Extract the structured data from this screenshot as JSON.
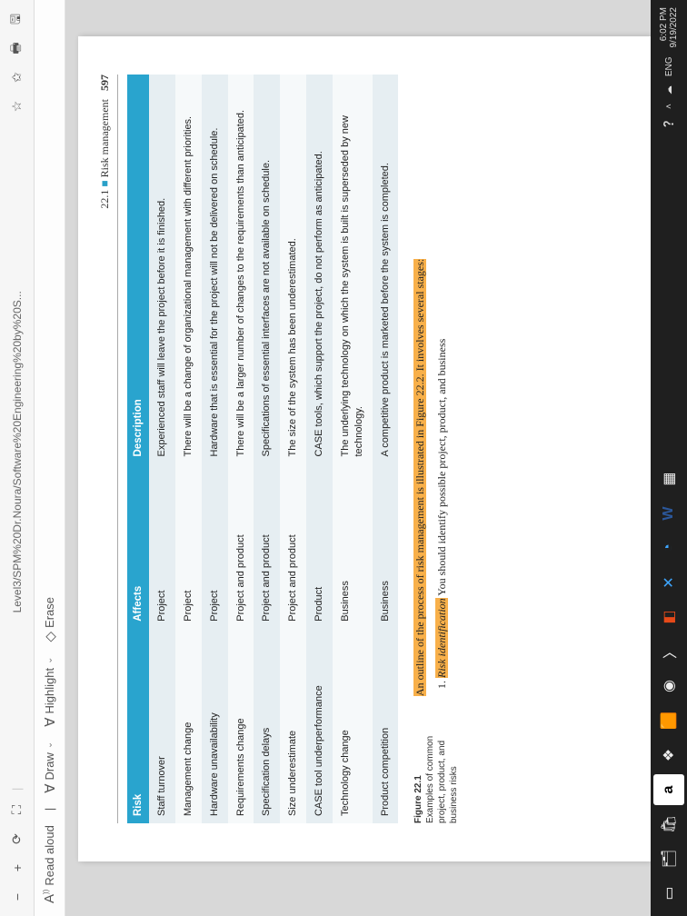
{
  "browser_tab_title": "Level3/SPM%20Dr.Noura/Software%20Engineering%20by%20S...",
  "toolbar2": {
    "read_aloud": "Read aloud",
    "draw": "Draw",
    "highlight": "Highlight",
    "erase": "Erase"
  },
  "page": {
    "running_section": "22.1",
    "running_title_marker": "■",
    "running_title": "Risk management",
    "page_number": "597",
    "table": {
      "headers": [
        "Risk",
        "Affects",
        "Description"
      ],
      "col_widths": [
        "26%",
        "22%",
        "52%"
      ],
      "header_bg": "#29a4ce",
      "header_fg": "#ffffff",
      "row_odd_bg": "#e6eef2",
      "row_even_bg": "#f6f9fa",
      "rows": [
        [
          "Staff turnover",
          "Project",
          "Experienced staff will leave the project before it is finished."
        ],
        [
          "Management change",
          "Project",
          "There will be a change of organizational management with different priorities."
        ],
        [
          "Hardware unavailability",
          "Project",
          "Hardware that is essential for the project will not be delivered on schedule."
        ],
        [
          "Requirements change",
          "Project and product",
          "There will be a larger number of changes to the requirements than anticipated."
        ],
        [
          "Specification delays",
          "Project and product",
          "Specifications of essential interfaces are not available on schedule."
        ],
        [
          "Size underestimate",
          "Project and product",
          "The size of the system has been underestimated."
        ],
        [
          "CASE tool underperformance",
          "Product",
          "CASE tools, which support the project, do not perform as anticipated."
        ],
        [
          "Technology change",
          "Business",
          "The underlying technology on which the system is built is superseded by new technology."
        ],
        [
          "Product competition",
          "Business",
          "A competitive product is marketed before the system is completed."
        ]
      ]
    },
    "figure": {
      "label": "Figure 22.1",
      "caption": "Examples of common project, product, and business risks"
    },
    "paragraph_hl": "An outline of the process of risk management is illustrated in Figure 22.2. It involves several stages:",
    "list_item_1_prefix": "Risk identification",
    "list_item_1_rest": " You should identify possible project, product, and business"
  },
  "taskbar": {
    "time": "6:02 PM",
    "date": "9/19/2022",
    "lang": "ENG"
  }
}
